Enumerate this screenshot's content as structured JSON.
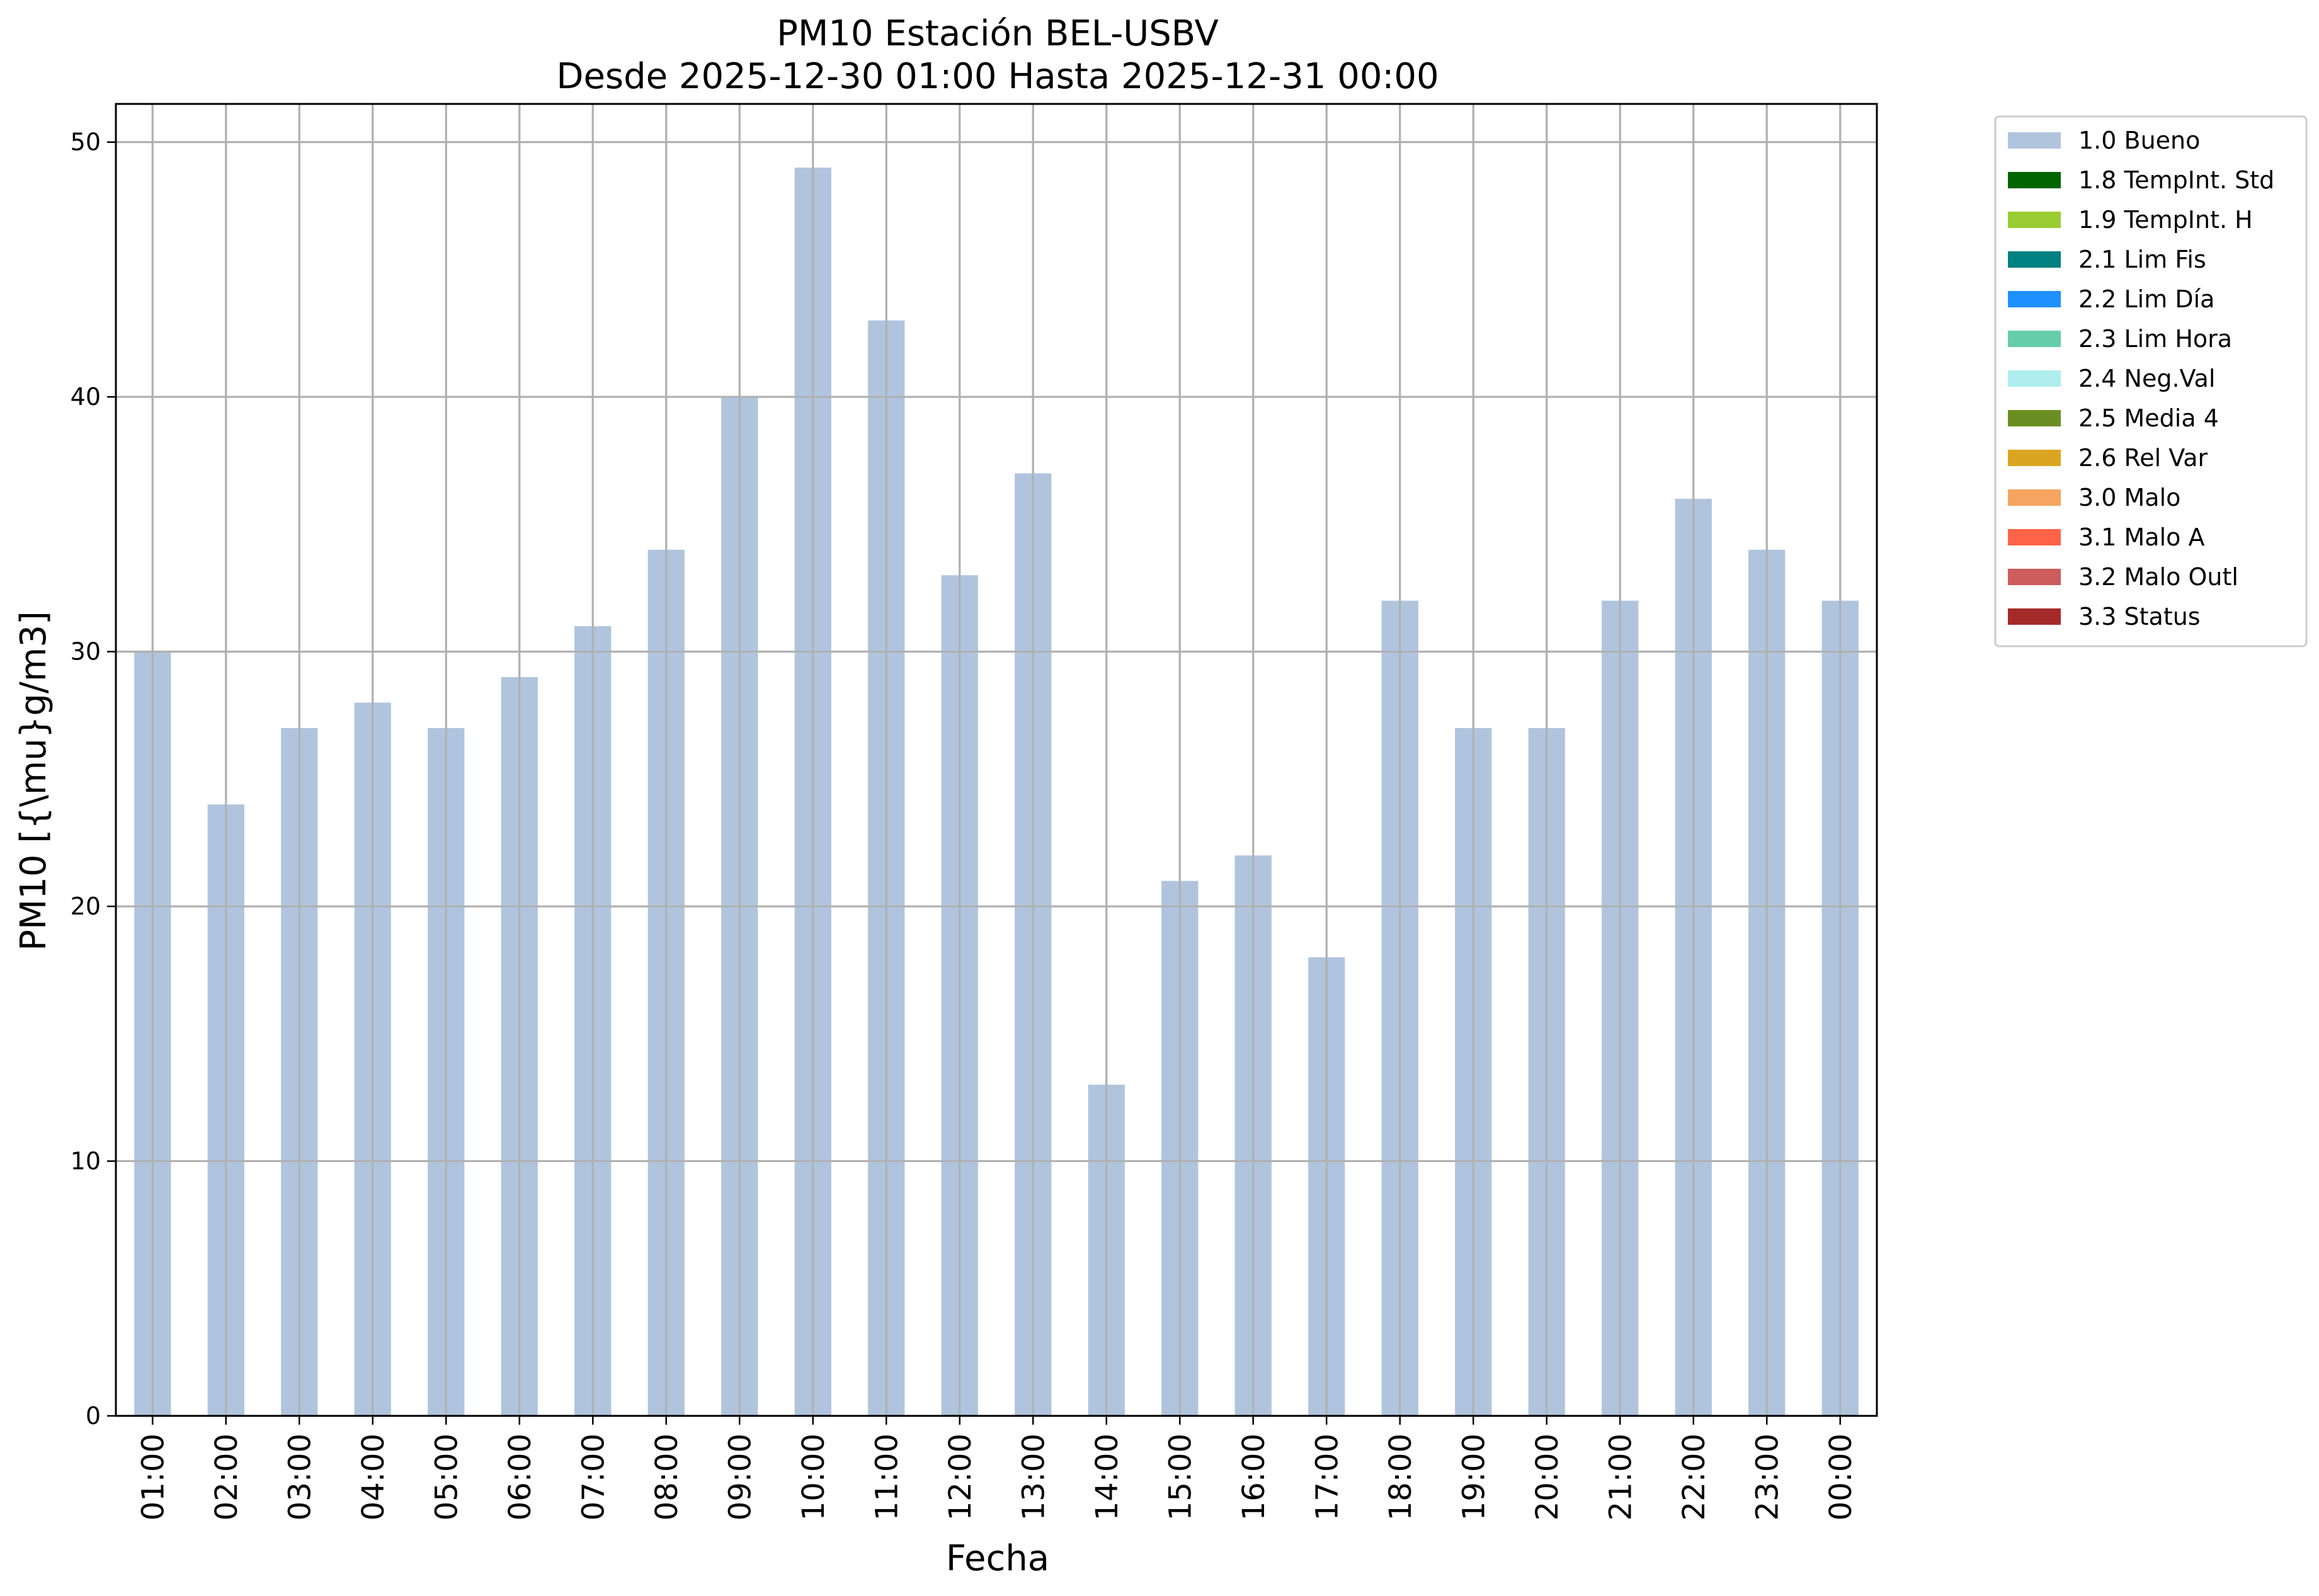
{
  "chart_data": {
    "type": "bar",
    "title": "PM10 Estación BEL-USBV",
    "subtitle": "Desde 2025-12-30 01:00 Hasta 2025-12-31 00:00",
    "xlabel": "Fecha",
    "ylabel": "PM10 [{\\mu}g/m3]",
    "ylim": [
      0,
      51.5
    ],
    "yticks": [
      0,
      10,
      20,
      30,
      40,
      50
    ],
    "grid": true,
    "legend_position": "outside-top-right",
    "categories": [
      "01:00",
      "02:00",
      "03:00",
      "04:00",
      "05:00",
      "06:00",
      "07:00",
      "08:00",
      "09:00",
      "10:00",
      "11:00",
      "12:00",
      "13:00",
      "14:00",
      "15:00",
      "16:00",
      "17:00",
      "18:00",
      "19:00",
      "20:00",
      "21:00",
      "22:00",
      "23:00",
      "00:00"
    ],
    "series": [
      {
        "name": "1.0 Bueno",
        "color": "#b0c4de",
        "values": [
          30,
          24,
          27,
          28,
          27,
          29,
          31,
          34,
          40,
          49,
          43,
          33,
          37,
          13,
          21,
          22,
          18,
          32,
          27,
          27,
          32,
          36,
          34,
          32
        ]
      }
    ],
    "legend": [
      {
        "label": "1.0 Bueno",
        "color": "#b0c4de"
      },
      {
        "label": "1.8 TempInt. Std",
        "color": "#006400"
      },
      {
        "label": "1.9 TempInt. H",
        "color": "#9acd32"
      },
      {
        "label": "2.1 Lim Fis",
        "color": "#008080"
      },
      {
        "label": "2.2 Lim Día",
        "color": "#1e90ff"
      },
      {
        "label": "2.3 Lim Hora",
        "color": "#66cdaa"
      },
      {
        "label": "2.4 Neg.Val",
        "color": "#afeeee"
      },
      {
        "label": "2.5 Media 4",
        "color": "#6b8e23"
      },
      {
        "label": "2.6 Rel Var",
        "color": "#daa520"
      },
      {
        "label": "3.0 Malo",
        "color": "#f4a460"
      },
      {
        "label": "3.1 Malo A",
        "color": "#ff6347"
      },
      {
        "label": "3.2 Malo Outl",
        "color": "#cd5c5c"
      },
      {
        "label": "3.3 Status",
        "color": "#a52a2a"
      }
    ]
  }
}
